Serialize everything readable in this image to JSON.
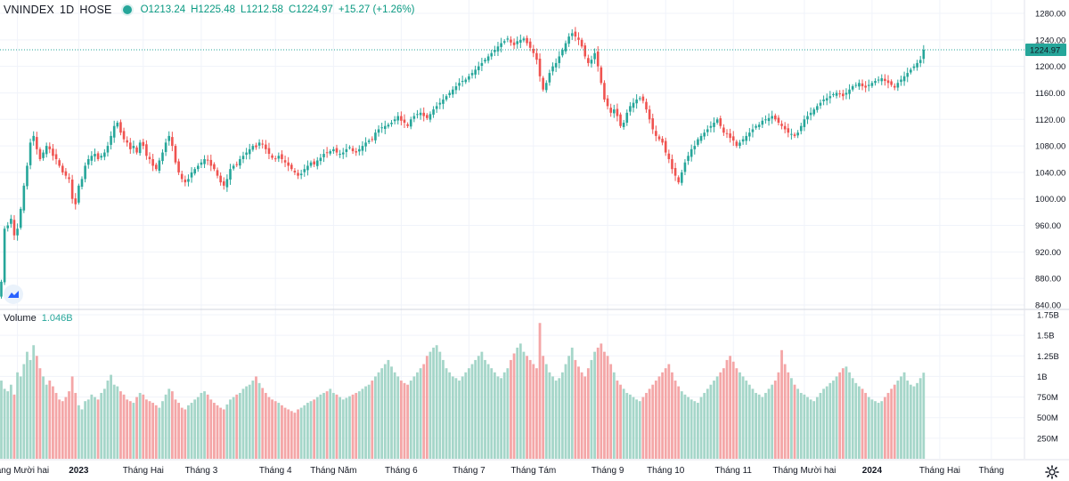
{
  "header": {
    "symbol": "VNINDEX",
    "interval": "1D",
    "exchange": "HOSE",
    "open": "O1213.24",
    "high": "H1225.48",
    "low": "L1212.58",
    "close": "C1224.97",
    "change": "+15.27 (+1.26%)"
  },
  "volume_legend": {
    "label": "Volume",
    "value": "1.046B"
  },
  "last_price_label": "1224.97",
  "colors": {
    "up": "#26a69a",
    "down": "#ef5350",
    "up_vol": "#a5d6c9",
    "down_vol": "#f4a6a7",
    "grid": "#f0f3fa",
    "price_line": "#26a69a"
  },
  "chart_data": {
    "type": "candlestick",
    "title": "VNINDEX 1D HOSE",
    "price_axis": {
      "ticks": [
        840,
        880,
        920,
        960,
        1000,
        1040,
        1080,
        1120,
        1160,
        1200,
        1240,
        1280
      ],
      "range": [
        840,
        1280
      ]
    },
    "volume_axis": {
      "ticks": [
        "250M",
        "500M",
        "750M",
        "1B",
        "1.25B",
        "1.5B",
        "1.75B"
      ],
      "tick_values": [
        0.25,
        0.5,
        0.75,
        1.0,
        1.25,
        1.5,
        1.75
      ],
      "range": [
        0,
        1.75
      ],
      "units": "billions"
    },
    "time_labels": [
      {
        "label": "Tháng Mười hai",
        "idx": 5,
        "bold": false
      },
      {
        "label": "2023",
        "idx": 24,
        "bold": true
      },
      {
        "label": "Tháng Hai",
        "idx": 44,
        "bold": false
      },
      {
        "label": "Tháng 3",
        "idx": 62,
        "bold": false
      },
      {
        "label": "Tháng 4",
        "idx": 85,
        "bold": false
      },
      {
        "label": "Tháng Năm",
        "idx": 103,
        "bold": false
      },
      {
        "label": "Tháng 6",
        "idx": 124,
        "bold": false
      },
      {
        "label": "Tháng 7",
        "idx": 145,
        "bold": false
      },
      {
        "label": "Tháng Tám",
        "idx": 165,
        "bold": false
      },
      {
        "label": "Tháng 9",
        "idx": 188,
        "bold": false
      },
      {
        "label": "Tháng 10",
        "idx": 206,
        "bold": false
      },
      {
        "label": "Tháng 11",
        "idx": 227,
        "bold": false
      },
      {
        "label": "Tháng Mười hai",
        "idx": 249,
        "bold": false
      },
      {
        "label": "2024",
        "idx": 270,
        "bold": true
      },
      {
        "label": "Tháng Hai",
        "idx": 291,
        "bold": false
      },
      {
        "label": "Tháng",
        "idx": 307,
        "bold": false
      }
    ],
    "closes": [
      875,
      955,
      960,
      970,
      945,
      955,
      985,
      1020,
      1050,
      1085,
      1095,
      1075,
      1060,
      1070,
      1080,
      1075,
      1065,
      1060,
      1050,
      1040,
      1035,
      1030,
      1000,
      992,
      1020,
      1030,
      1050,
      1060,
      1065,
      1068,
      1060,
      1065,
      1070,
      1080,
      1095,
      1110,
      1115,
      1100,
      1090,
      1085,
      1075,
      1080,
      1070,
      1085,
      1080,
      1065,
      1060,
      1050,
      1045,
      1058,
      1070,
      1085,
      1095,
      1080,
      1055,
      1040,
      1030,
      1025,
      1030,
      1040,
      1045,
      1050,
      1055,
      1060,
      1058,
      1050,
      1045,
      1035,
      1025,
      1020,
      1030,
      1045,
      1050,
      1052,
      1060,
      1065,
      1070,
      1075,
      1080,
      1078,
      1085,
      1082,
      1075,
      1068,
      1062,
      1060,
      1065,
      1060,
      1055,
      1050,
      1045,
      1040,
      1035,
      1038,
      1045,
      1050,
      1055,
      1052,
      1058,
      1062,
      1068,
      1070,
      1072,
      1075,
      1070,
      1068,
      1070,
      1075,
      1078,
      1072,
      1070,
      1075,
      1080,
      1085,
      1088,
      1090,
      1100,
      1105,
      1108,
      1110,
      1112,
      1115,
      1120,
      1125,
      1118,
      1115,
      1110,
      1120,
      1125,
      1128,
      1130,
      1125,
      1122,
      1128,
      1135,
      1140,
      1145,
      1150,
      1155,
      1160,
      1165,
      1170,
      1175,
      1178,
      1180,
      1185,
      1190,
      1195,
      1200,
      1205,
      1210,
      1215,
      1220,
      1225,
      1230,
      1235,
      1238,
      1242,
      1236,
      1232,
      1238,
      1240,
      1242,
      1235,
      1228,
      1220,
      1210,
      1185,
      1165,
      1175,
      1190,
      1200,
      1205,
      1215,
      1225,
      1235,
      1245,
      1250,
      1245,
      1240,
      1230,
      1215,
      1205,
      1210,
      1220,
      1200,
      1175,
      1150,
      1140,
      1130,
      1135,
      1125,
      1110,
      1115,
      1130,
      1140,
      1145,
      1150,
      1152,
      1148,
      1135,
      1120,
      1105,
      1095,
      1090,
      1085,
      1070,
      1060,
      1045,
      1035,
      1025,
      1040,
      1055,
      1065,
      1075,
      1080,
      1090,
      1095,
      1100,
      1105,
      1110,
      1115,
      1120,
      1110,
      1100,
      1098,
      1092,
      1088,
      1080,
      1085,
      1090,
      1095,
      1100,
      1105,
      1110,
      1112,
      1118,
      1120,
      1122,
      1125,
      1120,
      1115,
      1110,
      1105,
      1100,
      1098,
      1095,
      1100,
      1110,
      1120,
      1125,
      1130,
      1135,
      1140,
      1145,
      1150,
      1152,
      1155,
      1158,
      1160,
      1158,
      1155,
      1160,
      1165,
      1170,
      1172,
      1175,
      1170,
      1168,
      1172,
      1175,
      1178,
      1180,
      1182,
      1178,
      1175,
      1172,
      1168,
      1175,
      1180,
      1185,
      1190,
      1195,
      1200,
      1205,
      1209.7,
      1224.97
    ],
    "volumes": [
      0.95,
      0.85,
      0.82,
      0.9,
      0.78,
      1.05,
      1.0,
      1.15,
      1.3,
      1.2,
      1.38,
      1.25,
      1.1,
      1.0,
      0.9,
      0.95,
      0.88,
      0.8,
      0.72,
      0.7,
      0.75,
      0.82,
      1.0,
      0.8,
      0.65,
      0.6,
      0.7,
      0.72,
      0.78,
      0.75,
      0.72,
      0.8,
      0.85,
      0.95,
      1.02,
      0.9,
      0.88,
      0.82,
      0.78,
      0.72,
      0.7,
      0.68,
      0.75,
      0.8,
      0.78,
      0.72,
      0.7,
      0.68,
      0.65,
      0.62,
      0.7,
      0.78,
      0.85,
      0.82,
      0.72,
      0.68,
      0.62,
      0.6,
      0.65,
      0.68,
      0.72,
      0.75,
      0.8,
      0.82,
      0.78,
      0.72,
      0.68,
      0.65,
      0.62,
      0.6,
      0.66,
      0.72,
      0.75,
      0.78,
      0.8,
      0.85,
      0.88,
      0.9,
      0.95,
      1.0,
      0.92,
      0.86,
      0.8,
      0.75,
      0.72,
      0.7,
      0.68,
      0.65,
      0.62,
      0.6,
      0.58,
      0.56,
      0.6,
      0.62,
      0.65,
      0.68,
      0.7,
      0.72,
      0.75,
      0.78,
      0.8,
      0.82,
      0.85,
      0.8,
      0.78,
      0.75,
      0.72,
      0.74,
      0.76,
      0.78,
      0.8,
      0.82,
      0.85,
      0.88,
      0.9,
      0.95,
      1.0,
      1.05,
      1.1,
      1.15,
      1.2,
      1.12,
      1.05,
      1.0,
      0.95,
      0.92,
      0.9,
      0.95,
      1.0,
      1.05,
      1.1,
      1.15,
      1.25,
      1.3,
      1.35,
      1.38,
      1.3,
      1.2,
      1.1,
      1.05,
      1.0,
      0.98,
      0.95,
      1.0,
      1.05,
      1.1,
      1.15,
      1.2,
      1.25,
      1.3,
      1.2,
      1.15,
      1.1,
      1.05,
      1.0,
      0.98,
      1.05,
      1.1,
      1.2,
      1.28,
      1.35,
      1.4,
      1.3,
      1.25,
      1.2,
      1.15,
      1.1,
      1.65,
      1.25,
      1.15,
      1.05,
      1.0,
      0.95,
      0.98,
      1.05,
      1.15,
      1.25,
      1.35,
      1.2,
      1.12,
      1.05,
      1.0,
      1.1,
      1.2,
      1.3,
      1.35,
      1.4,
      1.3,
      1.25,
      1.15,
      1.05,
      0.95,
      0.9,
      0.85,
      0.8,
      0.78,
      0.75,
      0.72,
      0.7,
      0.75,
      0.8,
      0.85,
      0.9,
      0.95,
      1.0,
      1.05,
      1.1,
      1.15,
      1.05,
      0.95,
      0.88,
      0.82,
      0.78,
      0.75,
      0.72,
      0.7,
      0.68,
      0.75,
      0.8,
      0.85,
      0.9,
      0.95,
      1.0,
      1.05,
      1.1,
      1.2,
      1.25,
      1.18,
      1.1,
      1.05,
      1.0,
      0.95,
      0.9,
      0.85,
      0.8,
      0.78,
      0.75,
      0.8,
      0.85,
      0.9,
      0.95,
      1.05,
      1.32,
      1.15,
      1.05,
      0.98,
      0.9,
      0.85,
      0.8,
      0.78,
      0.75,
      0.72,
      0.7,
      0.75,
      0.8,
      0.85,
      0.88,
      0.92,
      0.95,
      1.0,
      1.05,
      1.1,
      1.12,
      1.05,
      0.98,
      0.92,
      0.88,
      0.85,
      0.8,
      0.75,
      0.72,
      0.7,
      0.68,
      0.7,
      0.75,
      0.8,
      0.85,
      0.9,
      0.95,
      1.0,
      1.05,
      0.95,
      0.9,
      0.88,
      0.92,
      0.98,
      1.046
    ]
  }
}
